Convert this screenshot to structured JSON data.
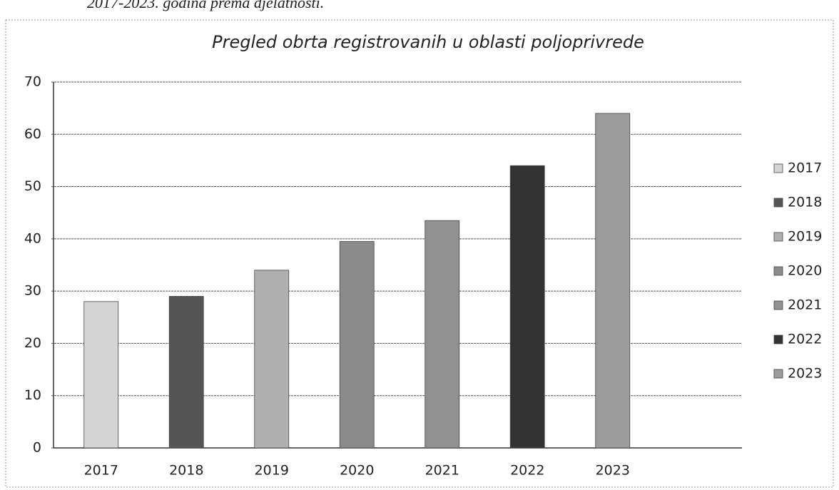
{
  "caption": "2017-2023. godina prema djelatnosti.",
  "chart_data": {
    "type": "bar",
    "title": "Pregled obrta registrovanih u oblasti poljoprivrede",
    "categories": [
      "2017",
      "2018",
      "2019",
      "2020",
      "2021",
      "2022",
      "2023"
    ],
    "values": [
      28,
      29,
      34,
      39.5,
      43.5,
      54,
      64
    ],
    "colors": [
      "#d4d4d4",
      "#555555",
      "#b0b0b0",
      "#8a8a8a",
      "#909090",
      "#333333",
      "#9c9c9c"
    ],
    "ylim": [
      0,
      70
    ],
    "yticks": [
      0,
      10,
      20,
      30,
      40,
      50,
      60,
      70
    ],
    "grid": true,
    "legend": "right"
  }
}
